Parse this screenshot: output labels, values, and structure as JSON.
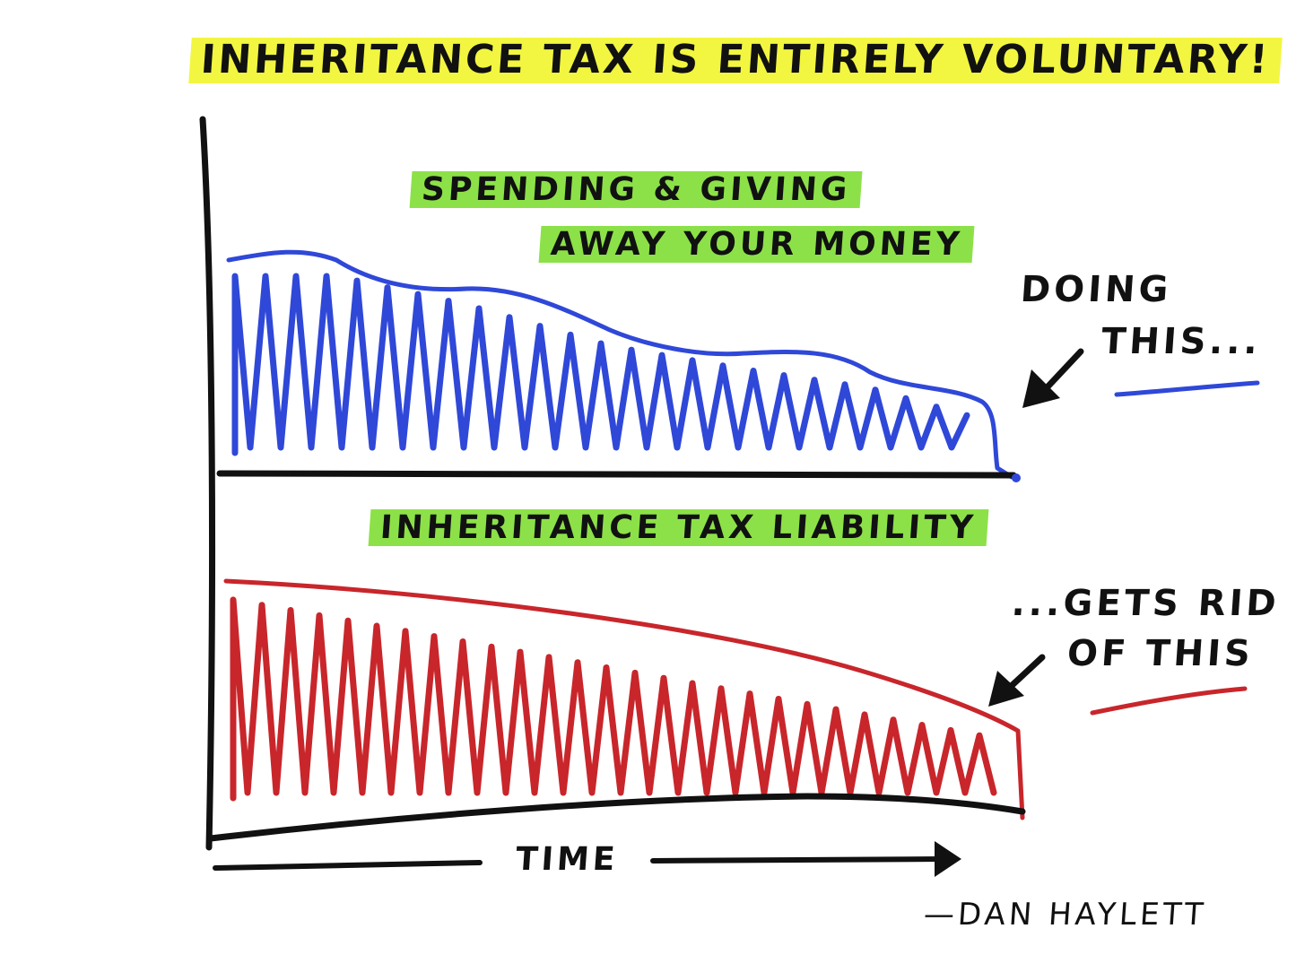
{
  "title": "INHERITANCE TAX IS ENTIRELY VOLUNTARY!",
  "upper_panel": {
    "label_line1": "SPENDING & GIVING",
    "label_line2": "AWAY YOUR MONEY"
  },
  "lower_panel": {
    "label": "INHERITANCE TAX LIABILITY"
  },
  "annotations": {
    "doing_line1": "DOING",
    "doing_line2": "THIS...",
    "gets_line1": "...GETS RID",
    "gets_line2": "OF THIS"
  },
  "x_axis_label": "TIME",
  "author": "—DAN HAYLETT",
  "colors": {
    "spending": "#2f48d8",
    "tax": "#c8262b",
    "title_highlight": "#f0f51e",
    "label_highlight": "#78dc28",
    "ink": "#111111"
  }
}
